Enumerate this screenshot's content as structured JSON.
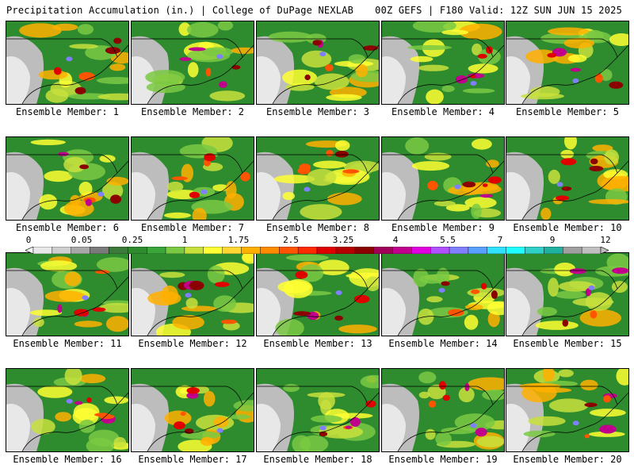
{
  "header": {
    "left": "Precipitation Accumulation (in.) | College of DuPage NEXLAB",
    "right": "00Z GEFS | F180 Valid: 12Z SUN JUN 15 2025"
  },
  "members": [
    {
      "label": "Ensemble Member: 1"
    },
    {
      "label": "Ensemble Member: 2"
    },
    {
      "label": "Ensemble Member: 3"
    },
    {
      "label": "Ensemble Member: 4"
    },
    {
      "label": "Ensemble Member: 5"
    },
    {
      "label": "Ensemble Member: 6"
    },
    {
      "label": "Ensemble Member: 7"
    },
    {
      "label": "Ensemble Member: 8"
    },
    {
      "label": "Ensemble Member: 9"
    },
    {
      "label": "Ensemble Member: 10"
    },
    {
      "label": "Ensemble Member: 11"
    },
    {
      "label": "Ensemble Member: 12"
    },
    {
      "label": "Ensemble Member: 13"
    },
    {
      "label": "Ensemble Member: 14"
    },
    {
      "label": "Ensemble Member: 15"
    },
    {
      "label": "Ensemble Member: 16"
    },
    {
      "label": "Ensemble Member: 17"
    },
    {
      "label": "Ensemble Member: 18"
    },
    {
      "label": "Ensemble Member: 19"
    },
    {
      "label": "Ensemble Member: 20"
    }
  ],
  "colorbar": {
    "labels": [
      "0",
      "0.05",
      "0.25",
      "1",
      "1.75",
      "2.5",
      "3.25",
      "4",
      "5.5",
      "7",
      "9",
      "12"
    ],
    "colors": [
      "#e8e8e8",
      "#cfcfcf",
      "#a8a8a8",
      "#7a7a7a",
      "#3c7a3c",
      "#2e8b2e",
      "#3aa63a",
      "#7ac943",
      "#c8e03c",
      "#ffff33",
      "#ffd633",
      "#ffb000",
      "#ff8c00",
      "#ff5500",
      "#ff2a00",
      "#e00000",
      "#b40000",
      "#8b0000",
      "#a0005a",
      "#c0008c",
      "#e000e0",
      "#b050ff",
      "#8080ff",
      "#5aa0ff",
      "#30e0ff",
      "#20ffff",
      "#30d0c8",
      "#20b0a0",
      "#a0a0a0",
      "#c0c0c0"
    ]
  }
}
